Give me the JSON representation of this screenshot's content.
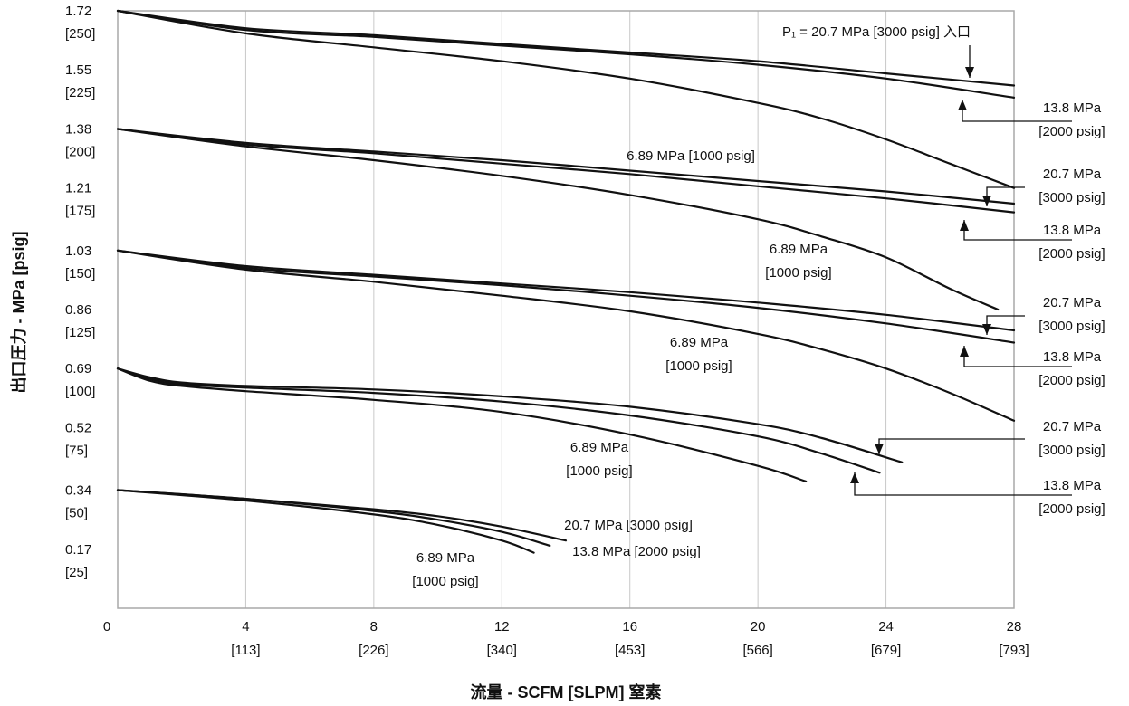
{
  "chart_data": {
    "type": "line",
    "xlabel": "流量 - SCFM [SLPM] 窒素",
    "ylabel": "出口圧力 - MPa [psig]",
    "xlim": [
      0,
      28
    ],
    "ylim": [
      0,
      1.72
    ],
    "grid": true,
    "x_ticks": [
      {
        "value": 0,
        "label": "0",
        "sub": ""
      },
      {
        "value": 4,
        "label": "4",
        "sub": "[113]"
      },
      {
        "value": 8,
        "label": "8",
        "sub": "[226]"
      },
      {
        "value": 12,
        "label": "12",
        "sub": "[340]"
      },
      {
        "value": 16,
        "label": "16",
        "sub": "[453]"
      },
      {
        "value": 20,
        "label": "20",
        "sub": "[566]"
      },
      {
        "value": 24,
        "label": "24",
        "sub": "[679]"
      },
      {
        "value": 28,
        "label": "28",
        "sub": "[793]"
      }
    ],
    "y_ticks": [
      {
        "value": 1.72,
        "label": "1.72",
        "sub": "[250]"
      },
      {
        "value": 1.55,
        "label": "1.55",
        "sub": "[225]"
      },
      {
        "value": 1.38,
        "label": "1.38",
        "sub": "[200]"
      },
      {
        "value": 1.21,
        "label": "1.21",
        "sub": "[175]"
      },
      {
        "value": 1.03,
        "label": "1.03",
        "sub": "[150]"
      },
      {
        "value": 0.86,
        "label": "0.86",
        "sub": "[125]"
      },
      {
        "value": 0.69,
        "label": "0.69",
        "sub": "[100]"
      },
      {
        "value": 0.52,
        "label": "0.52",
        "sub": "[75]"
      },
      {
        "value": 0.34,
        "label": "0.34",
        "sub": "[50]"
      },
      {
        "value": 0.17,
        "label": "0.17",
        "sub": "[25]"
      }
    ],
    "series": [
      {
        "inlet": "20.7 MPa [3000 psig]",
        "set_pressure": 1.72,
        "x": [
          0,
          4,
          8,
          12,
          16,
          20,
          24,
          28
        ],
        "y": [
          1.72,
          1.67,
          1.65,
          1.625,
          1.6,
          1.575,
          1.54,
          1.505
        ]
      },
      {
        "inlet": "13.8 MPa [2000 psig]",
        "set_pressure": 1.72,
        "x": [
          0,
          4,
          8,
          12,
          16,
          20,
          24,
          28
        ],
        "y": [
          1.72,
          1.665,
          1.645,
          1.62,
          1.595,
          1.565,
          1.525,
          1.47
        ]
      },
      {
        "inlet": "6.89 MPa [1000 psig]",
        "set_pressure": 1.72,
        "x": [
          0,
          4,
          8,
          12,
          16,
          20,
          22,
          24,
          26,
          28
        ],
        "y": [
          1.72,
          1.655,
          1.615,
          1.575,
          1.525,
          1.455,
          1.41,
          1.35,
          1.28,
          1.21
        ]
      },
      {
        "inlet": "20.7 MPa [3000 psig]",
        "set_pressure": 1.38,
        "x": [
          0,
          4,
          8,
          12,
          16,
          20,
          24,
          28
        ],
        "y": [
          1.38,
          1.34,
          1.315,
          1.29,
          1.26,
          1.23,
          1.2,
          1.165
        ]
      },
      {
        "inlet": "13.8 MPa [2000 psig]",
        "set_pressure": 1.38,
        "x": [
          0,
          4,
          8,
          12,
          16,
          20,
          24,
          28
        ],
        "y": [
          1.38,
          1.335,
          1.31,
          1.28,
          1.25,
          1.215,
          1.18,
          1.14
        ]
      },
      {
        "inlet": "6.89 MPa [1000 psig]",
        "set_pressure": 1.38,
        "x": [
          0,
          4,
          8,
          12,
          16,
          20,
          22,
          24,
          26,
          27.5
        ],
        "y": [
          1.38,
          1.33,
          1.29,
          1.245,
          1.19,
          1.12,
          1.07,
          1.01,
          0.92,
          0.86
        ]
      },
      {
        "inlet": "20.7 MPa [3000 psig]",
        "set_pressure": 1.03,
        "x": [
          0,
          4,
          8,
          12,
          16,
          20,
          24,
          28
        ],
        "y": [
          1.03,
          0.985,
          0.96,
          0.935,
          0.91,
          0.88,
          0.845,
          0.8
        ]
      },
      {
        "inlet": "13.8 MPa [2000 psig]",
        "set_pressure": 1.03,
        "x": [
          0,
          4,
          8,
          12,
          16,
          20,
          24,
          28
        ],
        "y": [
          1.03,
          0.98,
          0.955,
          0.93,
          0.9,
          0.865,
          0.82,
          0.765
        ]
      },
      {
        "inlet": "6.89 MPa [1000 psig]",
        "set_pressure": 1.03,
        "x": [
          0,
          4,
          8,
          12,
          16,
          20,
          22,
          24,
          26,
          28
        ],
        "y": [
          1.03,
          0.975,
          0.94,
          0.9,
          0.855,
          0.79,
          0.745,
          0.69,
          0.62,
          0.54
        ]
      },
      {
        "inlet": "20.7 MPa [3000 psig]",
        "set_pressure": 0.69,
        "x": [
          0,
          1,
          2,
          4,
          8,
          12,
          16,
          20,
          22,
          24.5
        ],
        "y": [
          0.69,
          0.665,
          0.65,
          0.64,
          0.63,
          0.61,
          0.58,
          0.53,
          0.49,
          0.42
        ]
      },
      {
        "inlet": "13.8 MPa [2000 psig]",
        "set_pressure": 0.69,
        "x": [
          0,
          1,
          2,
          4,
          8,
          12,
          16,
          20,
          22,
          23.8
        ],
        "y": [
          0.69,
          0.66,
          0.645,
          0.635,
          0.62,
          0.595,
          0.555,
          0.495,
          0.445,
          0.39
        ]
      },
      {
        "inlet": "6.89 MPa [1000 psig]",
        "set_pressure": 0.69,
        "x": [
          0,
          1,
          2,
          4,
          8,
          12,
          16,
          20,
          21.5
        ],
        "y": [
          0.69,
          0.655,
          0.64,
          0.625,
          0.6,
          0.565,
          0.5,
          0.41,
          0.365
        ]
      },
      {
        "inlet": "20.7 MPa [3000 psig]",
        "set_pressure": 0.34,
        "x": [
          0,
          4,
          8,
          10,
          12,
          14
        ],
        "y": [
          0.34,
          0.315,
          0.285,
          0.265,
          0.235,
          0.195
        ]
      },
      {
        "inlet": "13.8 MPa [2000 psig]",
        "set_pressure": 0.34,
        "x": [
          0,
          4,
          8,
          10,
          12,
          13.5
        ],
        "y": [
          0.34,
          0.315,
          0.28,
          0.255,
          0.22,
          0.18
        ]
      },
      {
        "inlet": "6.89 MPa [1000 psig]",
        "set_pressure": 0.34,
        "x": [
          0,
          4,
          8,
          10,
          12,
          13
        ],
        "y": [
          0.34,
          0.31,
          0.27,
          0.24,
          0.195,
          0.16
        ]
      }
    ],
    "annotations": [
      {
        "id": "a1",
        "text": [
          "P₁ = 20.7 MPa [3000 psig] 入口"
        ]
      },
      {
        "id": "a2",
        "text": [
          "13.8 MPa",
          "[2000 psig]"
        ]
      },
      {
        "id": "a3",
        "text": [
          "6.89 MPa [1000 psig]"
        ]
      },
      {
        "id": "a4",
        "text": [
          "20.7 MPa",
          "[3000 psig]"
        ]
      },
      {
        "id": "a5",
        "text": [
          "13.8 MPa",
          "[2000 psig]"
        ]
      },
      {
        "id": "a6",
        "text": [
          "6.89 MPa",
          "[1000 psig]"
        ]
      },
      {
        "id": "a7",
        "text": [
          "20.7 MPa",
          "[3000 psig]"
        ]
      },
      {
        "id": "a8",
        "text": [
          "13.8 MPa",
          "[2000 psig]"
        ]
      },
      {
        "id": "a9",
        "text": [
          "6.89 MPa",
          "[1000 psig]"
        ]
      },
      {
        "id": "a10",
        "text": [
          "20.7 MPa",
          "[3000 psig]"
        ]
      },
      {
        "id": "a11",
        "text": [
          "13.8 MPa",
          "[2000 psig]"
        ]
      },
      {
        "id": "a12",
        "text": [
          "6.89 MPa",
          "[1000 psig]"
        ]
      },
      {
        "id": "a13",
        "text": [
          "20.7 MPa [3000 psig]"
        ]
      },
      {
        "id": "a14",
        "text": [
          "13.8 MPa [2000 psig]"
        ]
      },
      {
        "id": "a15",
        "text": [
          "6.89 MPa",
          "[1000 psig]"
        ]
      }
    ]
  }
}
